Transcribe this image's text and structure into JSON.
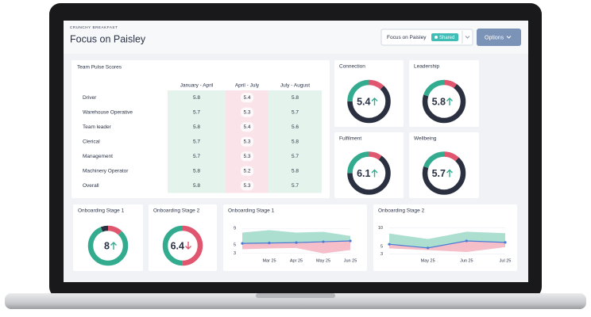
{
  "header": {
    "org": "CRUNCHY BREAKFAST",
    "title": "Focus on Paisley"
  },
  "toolbar": {
    "view": "Focus on Paisley",
    "badge": "Shared",
    "button": "Options"
  },
  "table": {
    "title": "Team Pulse Scores",
    "columns": [
      "January - April",
      "April - July",
      "July - August"
    ],
    "column_colors": [
      "#e4f4ed",
      "#fbe4e9",
      "#e4f4ed"
    ],
    "rows": [
      {
        "label": "Driver",
        "values": [
          5.8,
          5.4,
          5.8
        ]
      },
      {
        "label": "Warehouse Operative",
        "values": [
          5.7,
          5.3,
          5.7
        ]
      },
      {
        "label": "Team leader",
        "values": [
          5.8,
          5.4,
          5.6
        ]
      },
      {
        "label": "Clerical",
        "values": [
          5.7,
          5.3,
          5.8
        ]
      },
      {
        "label": "Management",
        "values": [
          5.7,
          5.3,
          5.7
        ]
      },
      {
        "label": "Machinery Operator",
        "values": [
          5.8,
          5.2,
          5.8
        ]
      },
      {
        "label": "Overall",
        "values": [
          5.8,
          5.3,
          5.7
        ]
      }
    ]
  },
  "gauges": [
    {
      "title": "Connection",
      "value": 5.4,
      "trend": "up",
      "segments": [
        {
          "color": "#e0566f",
          "share": 0.12
        },
        {
          "color": "#2b3040",
          "share": 0.63
        },
        {
          "color": "#33ab8f",
          "share": 0.25
        }
      ]
    },
    {
      "title": "Leadership",
      "value": 5.8,
      "trend": "up",
      "segments": [
        {
          "color": "#e0566f",
          "share": 0.1
        },
        {
          "color": "#2b3040",
          "share": 0.7
        },
        {
          "color": "#33ab8f",
          "share": 0.2
        }
      ]
    },
    {
      "title": "Fulfilment",
      "value": 6.1,
      "trend": "up",
      "segments": [
        {
          "color": "#e0566f",
          "share": 0.1
        },
        {
          "color": "#2b3040",
          "share": 0.65
        },
        {
          "color": "#33ab8f",
          "share": 0.25
        }
      ]
    },
    {
      "title": "Wellbeing",
      "value": 5.7,
      "trend": "up",
      "segments": [
        {
          "color": "#e0566f",
          "share": 0.12
        },
        {
          "color": "#2b3040",
          "share": 0.68
        },
        {
          "color": "#33ab8f",
          "share": 0.2
        }
      ]
    },
    {
      "title": "Onboarding Stage 1",
      "value": 8,
      "trend": "up",
      "segments": [
        {
          "color": "#e0566f",
          "share": 0.12
        },
        {
          "color": "#33ab8f",
          "share": 0.82
        },
        {
          "color": "#2b3040",
          "share": 0.06
        }
      ]
    },
    {
      "title": "Onboarding Stage 2",
      "value": 6.4,
      "trend": "down",
      "segments": [
        {
          "color": "#e0566f",
          "share": 0.5
        },
        {
          "color": "#33ab8f",
          "share": 0.5
        }
      ]
    }
  ],
  "trend_charts": [
    {
      "title": "Onboarding Stage 1",
      "categories": [
        null,
        "Mar 25",
        "Apr 25",
        "May 25",
        "Jun 25"
      ],
      "ylim": [
        2,
        10
      ],
      "yticks": [
        3,
        5,
        9
      ],
      "upper": [
        8,
        8.6,
        8,
        8.2,
        7.2
      ],
      "line": [
        5.4,
        5.5,
        5.6,
        5.8,
        6
      ],
      "lower": [
        4,
        4.2,
        4.3,
        3,
        3.8
      ],
      "upper_color": "#9fd9c8",
      "lower_color": "#f3b3c0",
      "line_color": "#4a7bd6"
    },
    {
      "title": "Onboarding Stage 2",
      "categories": [
        null,
        "May 25",
        "Jun 25",
        "Jul 25"
      ],
      "ylim": [
        2,
        11
      ],
      "yticks": [
        3,
        5,
        10
      ],
      "upper": [
        8.5,
        7,
        9,
        8.6
      ],
      "line": [
        5.6,
        4.6,
        6.5,
        6.1
      ],
      "lower": [
        4.5,
        4,
        3.5,
        4.8
      ],
      "upper_color": "#9fd9c8",
      "lower_color": "#f3b3c0",
      "line_color": "#4a7bd6"
    }
  ]
}
